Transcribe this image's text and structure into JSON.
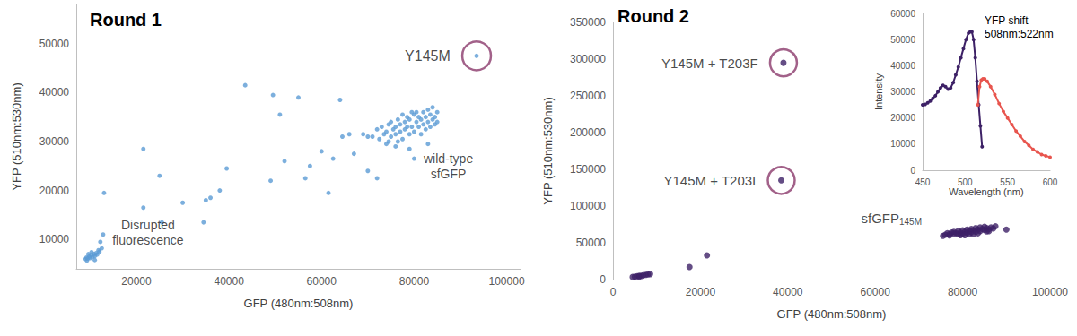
{
  "chart_data": [
    {
      "type": "scatter",
      "title": "Round 1",
      "x_label": "GFP (480nm:508nm)",
      "y_label": "YFP (510nm:530nm)",
      "xlim": [
        7000,
        103000
      ],
      "xticks": [
        20000,
        40000,
        60000,
        80000,
        100000
      ],
      "ylim": [
        4000,
        58000
      ],
      "yticks": [
        10000,
        20000,
        30000,
        40000,
        50000
      ],
      "grid": false,
      "series": [
        {
          "color": "#5b9bd5",
          "marker": "circle",
          "x": [
            71000,
            72000,
            72500,
            73000,
            73500,
            74000,
            74500,
            75000,
            75000,
            75500,
            76000,
            76000,
            76500,
            77000,
            77000,
            77500,
            78000,
            78000,
            78500,
            78500,
            79000,
            79000,
            79500,
            80000,
            80000,
            80500,
            80500,
            81000,
            81000,
            81500,
            81500,
            82000,
            82000,
            82500,
            82500,
            83000,
            83000,
            83500,
            83500,
            84000,
            84000,
            84500,
            84500,
            85000,
            85000,
            76500,
            74500,
            79500,
            77500,
            70000,
            13000,
            21500,
            21500,
            25000,
            25500,
            30000,
            34500,
            35000,
            36000,
            38000,
            39500,
            43500,
            49000,
            49500,
            51000,
            52000,
            55000,
            56500,
            57500,
            60000,
            61500,
            62500,
            64000,
            64500,
            66000,
            67000,
            69000,
            70000,
            72000,
            74000,
            76000,
            79000,
            80000,
            83000,
            9000,
            9200,
            9500,
            9800,
            10000,
            10200,
            10500,
            10800,
            11000,
            11300,
            11500,
            12000,
            9600,
            10300,
            11800,
            12500,
            12200,
            12800,
            11000,
            9300,
            93500
          ],
          "values": [
            31000,
            32500,
            30500,
            33000,
            31500,
            32000,
            33500,
            31000,
            34000,
            32500,
            33000,
            31500,
            34500,
            32000,
            33500,
            30500,
            34000,
            32500,
            35000,
            33000,
            31500,
            34500,
            33000,
            35500,
            32000,
            34000,
            36000,
            33000,
            35000,
            31500,
            34500,
            36000,
            33500,
            35000,
            32500,
            34000,
            36500,
            33000,
            35500,
            34500,
            37000,
            35000,
            33500,
            36000,
            34000,
            30000,
            30000,
            36000,
            35500,
            31000,
            19500,
            16500,
            28500,
            23000,
            13500,
            17500,
            13500,
            18000,
            18500,
            20000,
            24500,
            41500,
            22000,
            39500,
            35500,
            26000,
            39000,
            22500,
            25000,
            28000,
            19500,
            26500,
            38500,
            31000,
            31500,
            27500,
            31500,
            24000,
            22500,
            29500,
            29000,
            28500,
            26500,
            29500,
            6000,
            6300,
            6100,
            6500,
            6200,
            6800,
            6400,
            7000,
            6600,
            7200,
            6900,
            7500,
            7000,
            7400,
            7800,
            8200,
            9500,
            11000,
            5800,
            5700,
            47500
          ]
        },
        {
          "color": "#8b3a6b",
          "marker": "ring",
          "x": [
            93500
          ],
          "values": [
            47500
          ],
          "labels": [
            "Y145M"
          ]
        }
      ],
      "annotations": [
        {
          "text": "wild-type\nsfGFP",
          "x": 87400,
          "y": 24900
        },
        {
          "text": "Disrupted\nfluorescence",
          "x": 22500,
          "y": 11500
        }
      ]
    },
    {
      "type": "scatter",
      "title": "Round 2",
      "x_label": "GFP (480nm:508nm)",
      "y_label": "YFP (510nm:530nm)",
      "xlim": [
        0,
        100000
      ],
      "xticks": [
        0,
        20000,
        40000,
        60000,
        80000,
        100000
      ],
      "ylim": [
        0,
        350000
      ],
      "yticks": [
        0,
        50000,
        100000,
        150000,
        200000,
        250000,
        300000,
        350000
      ],
      "grid": false,
      "series": [
        {
          "color": "#3d2166",
          "marker": "circle",
          "x": [
            76000,
            76500,
            77000,
            77500,
            78000,
            78000,
            78500,
            79000,
            79000,
            79500,
            80000,
            80000,
            80500,
            81000,
            81000,
            81500,
            82000,
            82000,
            82500,
            83000,
            83000,
            83500,
            84000,
            84000,
            84500,
            85000,
            85000,
            85500,
            86000,
            86500,
            87000,
            90000,
            77000,
            75500,
            79500,
            81500,
            83500,
            85500,
            82500,
            80500,
            86000,
            87500,
            4500,
            5000,
            5500,
            6000,
            6500,
            7000,
            7500,
            8000,
            8500,
            6000,
            17500,
            21500,
            39000,
            38500
          ],
          "values": [
            61000,
            63000,
            62000,
            64000,
            62500,
            65000,
            63500,
            61500,
            66000,
            64000,
            62500,
            67000,
            65000,
            63500,
            68000,
            66000,
            64500,
            69000,
            67000,
            65000,
            70000,
            68000,
            66000,
            71000,
            69000,
            67500,
            72000,
            70000,
            68500,
            71000,
            69500,
            68000,
            60000,
            59500,
            60500,
            61500,
            63000,
            65500,
            62000,
            60500,
            66000,
            72500,
            3500,
            4000,
            4500,
            5000,
            5000,
            6000,
            6500,
            7000,
            7500,
            4000,
            17000,
            33000,
            295000,
            135000
          ]
        },
        {
          "color": "#8b3a6b",
          "marker": "ring",
          "x": [
            39000,
            38500
          ],
          "values": [
            295000,
            135000
          ],
          "labels": [
            "Y145M + T203F",
            "Y145M + T203I"
          ]
        }
      ],
      "annotations": [
        {
          "text": "sfGFP",
          "subscript": "145M",
          "x": 63700,
          "y": 84100
        }
      ]
    },
    {
      "type": "line",
      "title": "YFP shift\n508nm:522nm",
      "x_label": "Wavelength (nm)",
      "y_label": "Intensity",
      "xlim": [
        450,
        600
      ],
      "xticks": [
        450,
        500,
        550,
        600
      ],
      "ylim": [
        0,
        60000
      ],
      "yticks": [
        0,
        10000,
        20000,
        30000,
        40000,
        50000,
        60000
      ],
      "grid": false,
      "series": [
        {
          "color": "#3d2166",
          "marker": "circle",
          "x": [
            450,
            453,
            456,
            459,
            462,
            465,
            468,
            471,
            474,
            477,
            480,
            483,
            486,
            489,
            492,
            495,
            498,
            501,
            504,
            506,
            508,
            510,
            512,
            514,
            516,
            518,
            520
          ],
          "values": [
            25000,
            25200,
            25800,
            26500,
            27500,
            28500,
            30000,
            31500,
            32500,
            32000,
            31000,
            31500,
            33500,
            36500,
            39500,
            43000,
            46500,
            50000,
            52500,
            53000,
            53000,
            50000,
            43000,
            34000,
            25000,
            17000,
            9000
          ]
        },
        {
          "color": "#e8554e",
          "marker": "circle",
          "x": [
            515,
            517,
            519,
            521,
            523,
            526,
            530,
            535,
            540,
            545,
            550,
            555,
            560,
            565,
            570,
            575,
            580,
            585,
            590,
            595,
            600
          ],
          "values": [
            25000,
            32000,
            34500,
            35000,
            35000,
            34000,
            32000,
            29000,
            25500,
            22500,
            20000,
            17500,
            15000,
            13000,
            11000,
            9500,
            8000,
            7000,
            6000,
            5500,
            5000
          ]
        }
      ],
      "annotations": []
    }
  ]
}
